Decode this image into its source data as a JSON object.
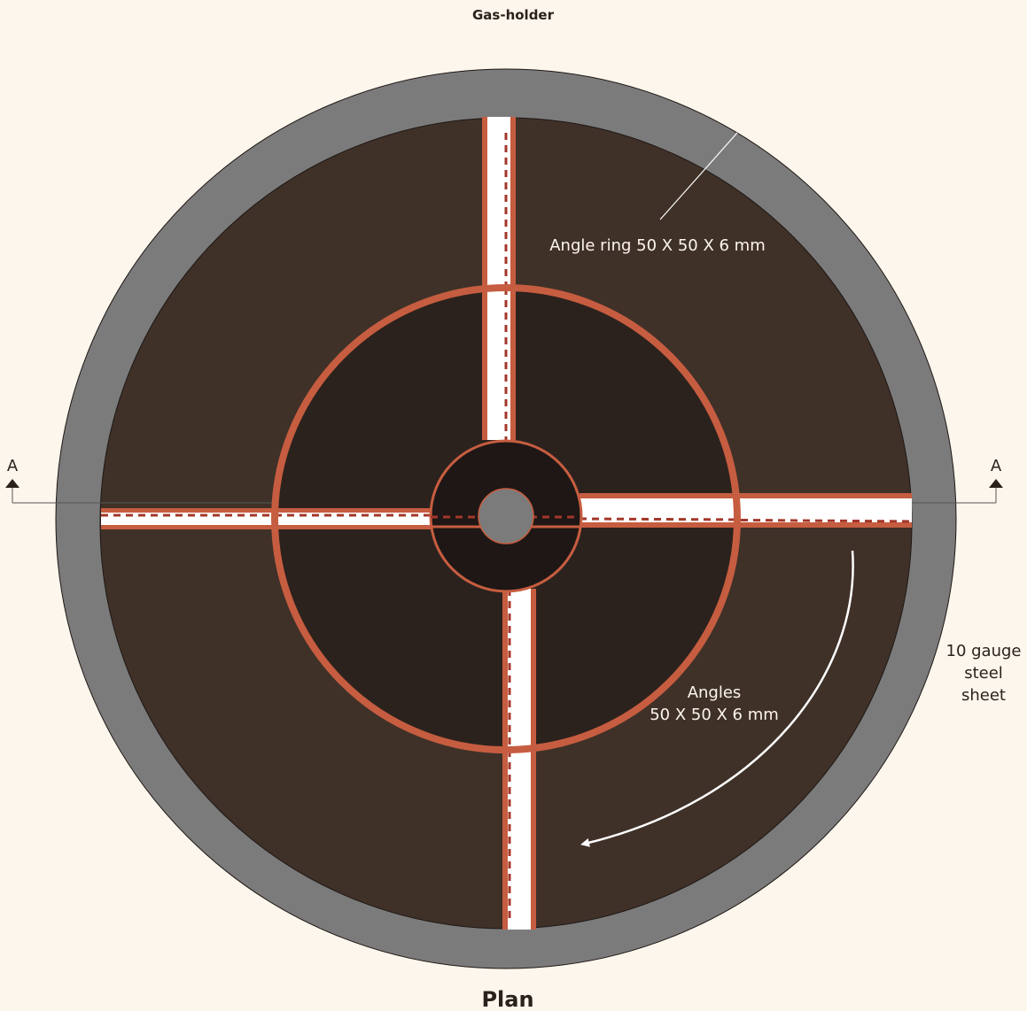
{
  "title": "Gas-holder",
  "caption": "Plan",
  "labels": {
    "angle_ring": "Angle ring 50 X 50 X 6 mm",
    "angles_line1": "Angles",
    "angles_line2": "50 X 50 X 6 mm",
    "steel_line1": "10 gauge",
    "steel_line2": "steel",
    "steel_line3": "sheet",
    "section_left": "A",
    "section_right": "A"
  },
  "colors": {
    "background": "#fdf6ec",
    "outer_steel_ring": "#7b7b7b",
    "outer_plate": "#3f3128",
    "inner_plate": "#2c221d",
    "center_disc": "#1e1715",
    "hub": "#7b7b7b",
    "angle_accent": "#c65d40",
    "angle_web": "#ffffff",
    "weld_dash": "#a3372a"
  }
}
